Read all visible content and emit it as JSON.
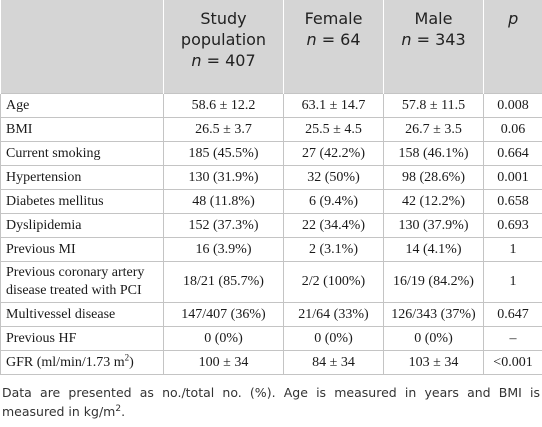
{
  "table": {
    "header": [
      {
        "title": "",
        "n": null
      },
      {
        "title": "Study population",
        "n": {
          "var": "n",
          "rest": "= 407"
        }
      },
      {
        "title": "Female",
        "n": {
          "var": "n",
          "rest": "= 64"
        }
      },
      {
        "title": "Male",
        "n": {
          "var": "n",
          "rest": "= 343"
        }
      },
      {
        "title": "p",
        "n": null
      }
    ],
    "rows": [
      [
        [
          {
            "text": "Age"
          }
        ],
        "58.6 ± 12.2",
        "63.1 ± 14.7",
        "57.8 ± 11.5",
        "0.008"
      ],
      [
        [
          {
            "text": "BMI"
          }
        ],
        "26.5 ± 3.7",
        "25.5 ± 4.5",
        "26.7 ± 3.5",
        "0.06"
      ],
      [
        [
          {
            "text": "Current smoking"
          }
        ],
        "185 (45.5%)",
        "27 (42.2%)",
        "158 (46.1%)",
        "0.664"
      ],
      [
        [
          {
            "text": "Hypertension"
          }
        ],
        "130 (31.9%)",
        "32 (50%)",
        "98 (28.6%)",
        "0.001"
      ],
      [
        [
          {
            "text": "Diabetes mellitus"
          }
        ],
        "48 (11.8%)",
        "6 (9.4%)",
        "42 (12.2%)",
        "0.658"
      ],
      [
        [
          {
            "text": "Dyslipidemia"
          }
        ],
        "152 (37.3%)",
        "22 (34.4%)",
        "130 (37.9%)",
        "0.693"
      ],
      [
        [
          {
            "text": "Previous MI"
          }
        ],
        "16 (3.9%)",
        "2 (3.1%)",
        "14 (4.1%)",
        "1"
      ],
      [
        [
          {
            "text": "Previous coronary artery disease treated with PCI"
          }
        ],
        "18/21 (85.7%)",
        "2/2 (100%)",
        "16/19 (84.2%)",
        "1"
      ],
      [
        [
          {
            "text": "Multivessel disease"
          }
        ],
        "147/407 (36%)",
        "21/64 (33%)",
        "126/343 (37%)",
        "0.647"
      ],
      [
        [
          {
            "text": "Previous HF"
          }
        ],
        "0 (0%)",
        "0 (0%)",
        "0 (0%)",
        "–"
      ],
      [
        [
          {
            "text": "GFR (ml/min/1.73 m"
          },
          {
            "sup": "2"
          },
          {
            "text": ")"
          }
        ],
        "100 ± 34",
        "84 ± 34",
        "103 ± 34",
        "<0.001"
      ]
    ]
  },
  "footnote": [
    {
      "text": "Data are presented as no./total no. (%). Age is measured in years and BMI is measured in kg/m"
    },
    {
      "sup": "2"
    },
    {
      "text": "."
    }
  ]
}
